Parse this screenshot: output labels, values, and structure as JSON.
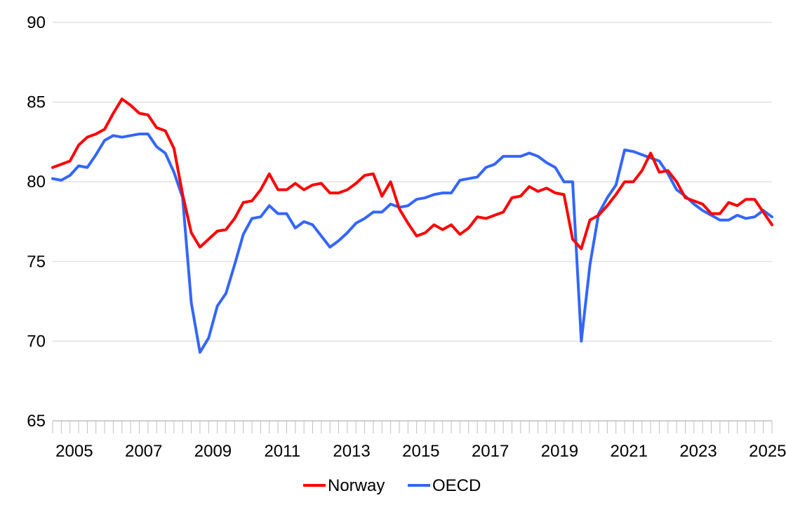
{
  "chart_data": {
    "type": "line",
    "title": "",
    "xlabel": "",
    "ylabel": "",
    "ylim": [
      65,
      90
    ],
    "yticks": [
      65,
      70,
      75,
      80,
      85,
      90
    ],
    "xlim": [
      2004.75,
      2025.5
    ],
    "xtick_labels": [
      "2005",
      "2007",
      "2009",
      "2011",
      "2013",
      "2015",
      "2017",
      "2019",
      "2021",
      "2023",
      "2025"
    ],
    "x": [
      2004.75,
      2005.0,
      2005.25,
      2005.5,
      2005.75,
      2006.0,
      2006.25,
      2006.5,
      2006.75,
      2007.0,
      2007.25,
      2007.5,
      2007.75,
      2008.0,
      2008.25,
      2008.5,
      2008.75,
      2009.0,
      2009.25,
      2009.5,
      2009.75,
      2010.0,
      2010.25,
      2010.5,
      2010.75,
      2011.0,
      2011.25,
      2011.5,
      2011.75,
      2012.0,
      2012.25,
      2012.5,
      2012.75,
      2013.0,
      2013.25,
      2013.5,
      2013.75,
      2014.0,
      2014.25,
      2014.5,
      2014.75,
      2015.0,
      2015.25,
      2015.5,
      2015.75,
      2016.0,
      2016.25,
      2016.5,
      2016.75,
      2017.0,
      2017.25,
      2017.5,
      2017.75,
      2018.0,
      2018.25,
      2018.5,
      2018.75,
      2019.0,
      2019.25,
      2019.5,
      2019.75,
      2020.0,
      2020.25,
      2020.5,
      2020.75,
      2021.0,
      2021.25,
      2021.5,
      2021.75,
      2022.0,
      2022.25,
      2022.5,
      2022.75,
      2023.0,
      2023.25,
      2023.5,
      2023.75,
      2024.0,
      2024.25,
      2024.5,
      2024.75,
      2025.0,
      2025.25,
      2025.5
    ],
    "series": [
      {
        "name": "Norway",
        "color": "#ff0000",
        "values": [
          80.9,
          81.1,
          81.3,
          82.3,
          82.8,
          83.0,
          83.3,
          84.3,
          85.2,
          84.8,
          84.3,
          84.2,
          83.4,
          83.2,
          82.1,
          79.2,
          76.8,
          75.9,
          76.4,
          76.9,
          77.0,
          77.7,
          78.7,
          78.8,
          79.5,
          80.5,
          79.5,
          79.5,
          79.9,
          79.5,
          79.8,
          79.9,
          79.3,
          79.3,
          79.5,
          79.9,
          80.4,
          80.5,
          79.1,
          80.0,
          78.3,
          77.4,
          76.6,
          76.8,
          77.3,
          77.0,
          77.3,
          76.7,
          77.1,
          77.8,
          77.7,
          77.9,
          78.1,
          79.0,
          79.1,
          79.7,
          79.4,
          79.6,
          79.3,
          79.2,
          76.4,
          75.8,
          77.6,
          77.9,
          78.5,
          79.2,
          80.0,
          80.0,
          80.7,
          81.8,
          80.6,
          80.7,
          80.0,
          79.0,
          78.8,
          78.6,
          78.0,
          78.0,
          78.7,
          78.5,
          78.9,
          78.9,
          78.1,
          77.3
        ]
      },
      {
        "name": "OECD",
        "color": "#3366ff",
        "values": [
          80.2,
          80.1,
          80.4,
          81.0,
          80.9,
          81.7,
          82.6,
          82.9,
          82.8,
          82.9,
          83.0,
          83.0,
          82.2,
          81.8,
          80.6,
          79.0,
          72.4,
          69.3,
          70.2,
          72.2,
          73.0,
          74.8,
          76.7,
          77.7,
          77.8,
          78.5,
          78.0,
          78.0,
          77.1,
          77.5,
          77.3,
          76.6,
          75.9,
          76.3,
          76.8,
          77.4,
          77.7,
          78.1,
          78.1,
          78.6,
          78.4,
          78.5,
          78.9,
          79.0,
          79.2,
          79.3,
          79.3,
          80.1,
          80.2,
          80.3,
          80.9,
          81.1,
          81.6,
          81.6,
          81.6,
          81.8,
          81.6,
          81.2,
          80.9,
          80.0,
          80.0,
          70.0,
          74.8,
          78.0,
          79.0,
          79.8,
          82.0,
          81.9,
          81.7,
          81.5,
          81.3,
          80.5,
          79.5,
          79.1,
          78.6,
          78.2,
          77.9,
          77.6,
          77.6,
          77.9,
          77.7,
          77.8,
          78.2,
          77.8
        ]
      }
    ],
    "legend_position": "bottom-center",
    "grid": "horizontal"
  }
}
